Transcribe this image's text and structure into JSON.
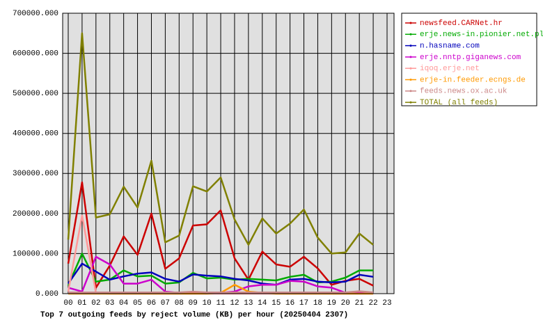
{
  "chart_data": {
    "type": "line",
    "title": "Top 7 outgoing feeds by reject volume (KB) per hour (20250404 2307)",
    "categories": [
      "00",
      "01",
      "02",
      "03",
      "04",
      "05",
      "06",
      "07",
      "08",
      "09",
      "10",
      "11",
      "12",
      "13",
      "14",
      "15",
      "16",
      "17",
      "18",
      "19",
      "20",
      "21",
      "22",
      "23"
    ],
    "ylim": [
      0,
      700000
    ],
    "yticks": [
      {
        "value": 0,
        "label": "0.000"
      },
      {
        "value": 100000,
        "label": "100000.000"
      },
      {
        "value": 200000,
        "label": "200000.000"
      },
      {
        "value": 300000,
        "label": "300000.000"
      },
      {
        "value": 400000,
        "label": "400000.000"
      },
      {
        "value": 500000,
        "label": "500000.000"
      },
      {
        "value": 600000,
        "label": "600000.000"
      },
      {
        "value": 700000,
        "label": "700000.000"
      }
    ],
    "grid": true,
    "legend": "top-right",
    "series": [
      {
        "name": "newsfeed.CARNet.hr",
        "color": "#cc0000",
        "values": [
          75000,
          278000,
          15000,
          70000,
          143000,
          97000,
          200000,
          62000,
          88000,
          170000,
          173000,
          208000,
          88000,
          35000,
          105000,
          73000,
          67000,
          92000,
          63000,
          22000,
          32000,
          37000,
          20000,
          null
        ]
      },
      {
        "name": "erje.news-in.pionier.net.pl",
        "color": "#00aa00",
        "values": [
          20000,
          100000,
          30000,
          35000,
          58000,
          43000,
          45000,
          25000,
          28000,
          52000,
          38000,
          40000,
          35000,
          37000,
          35000,
          33000,
          42000,
          47000,
          28000,
          30000,
          40000,
          58000,
          58000,
          null
        ]
      },
      {
        "name": "n.hasname.com",
        "color": "#0000bb",
        "values": [
          25000,
          75000,
          55000,
          35000,
          43000,
          50000,
          53000,
          37000,
          30000,
          48000,
          45000,
          43000,
          37000,
          33000,
          25000,
          22000,
          35000,
          37000,
          30000,
          28000,
          30000,
          47000,
          42000,
          null
        ]
      },
      {
        "name": "erje.nntp.giganews.com",
        "color": "#cc00cc",
        "values": [
          15000,
          5000,
          92000,
          73000,
          25000,
          25000,
          35000,
          5000,
          2000,
          3000,
          2000,
          2000,
          5000,
          18000,
          22000,
          22000,
          32000,
          30000,
          18000,
          15000,
          2000,
          3000,
          2000,
          null
        ]
      },
      {
        "name": "iqoq.erje.net",
        "color": "#ff9999",
        "values": [
          5000,
          195000,
          2000,
          0,
          0,
          0,
          0,
          0,
          0,
          0,
          0,
          0,
          0,
          0,
          0,
          0,
          0,
          0,
          0,
          0,
          0,
          0,
          0,
          null
        ]
      },
      {
        "name": "erje-in.feeder.ecngs.de",
        "color": "#ff9900",
        "values": [
          0,
          0,
          0,
          0,
          0,
          0,
          0,
          0,
          0,
          0,
          0,
          2000,
          22000,
          5000,
          2000,
          0,
          0,
          0,
          0,
          0,
          0,
          0,
          0,
          null
        ]
      },
      {
        "name": "feeds.news.ox.ac.uk",
        "color": "#cc8888",
        "values": [
          3000,
          3000,
          3000,
          3000,
          3000,
          3000,
          3000,
          3000,
          3000,
          5000,
          3000,
          3000,
          3000,
          3000,
          3000,
          3000,
          3000,
          3000,
          3000,
          3000,
          3000,
          6000,
          3000,
          null
        ]
      },
      {
        "name": "TOTAL (all feeds)",
        "color": "#808000",
        "values": [
          135000,
          650000,
          190000,
          198000,
          267000,
          215000,
          332000,
          128000,
          145000,
          268000,
          255000,
          290000,
          185000,
          122000,
          188000,
          150000,
          175000,
          210000,
          140000,
          100000,
          103000,
          150000,
          122000,
          null
        ]
      }
    ]
  }
}
